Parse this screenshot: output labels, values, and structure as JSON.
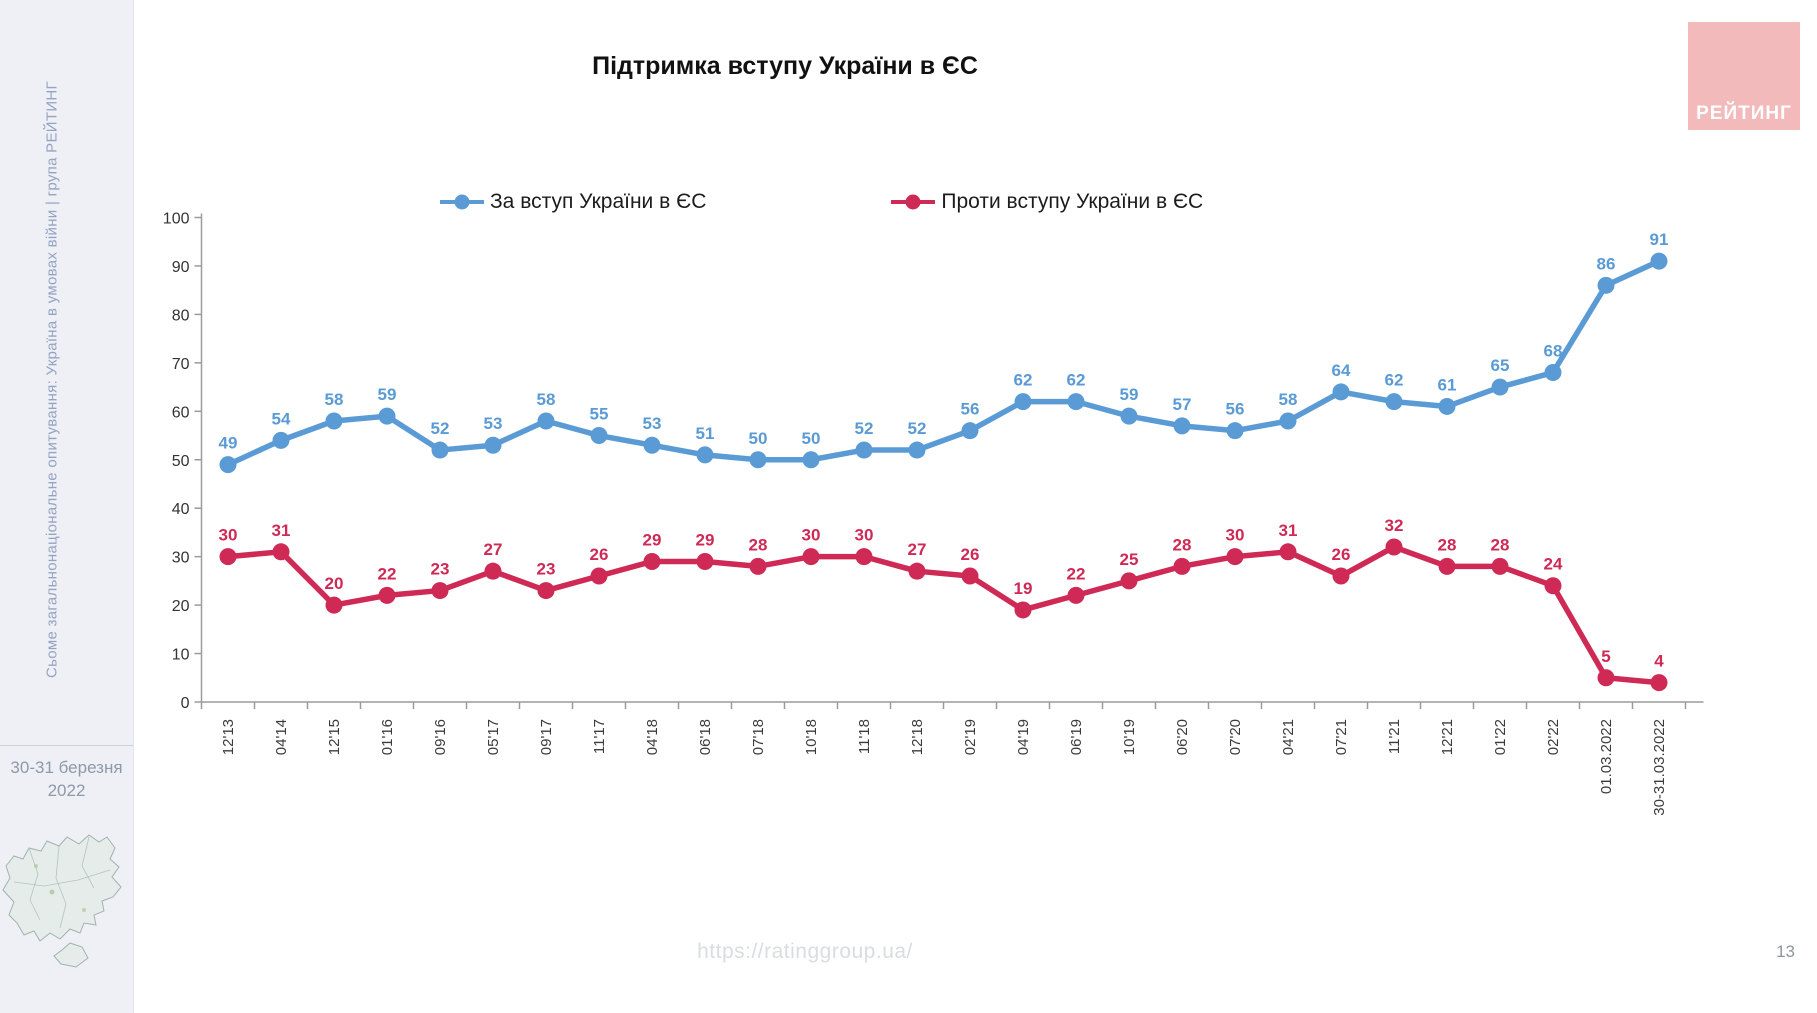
{
  "page": {
    "title": "Підтримка вступу України в ЄС",
    "footer_url": "https://ratinggroup.ua/",
    "page_number": "13",
    "logo_text": "РЕЙТИНГ",
    "logo_bg": "#f2baba"
  },
  "sidebar": {
    "survey_label": "Сьоме загальнонаціональне опитування: Україна в умовах війни | група РЕЙТИНГ",
    "date_line1": "30-31 березня",
    "date_line2": "2022"
  },
  "chart_data": {
    "type": "line",
    "title": "Підтримка вступу України в ЄС",
    "categories": [
      "12'13",
      "04'14",
      "12'15",
      "01'16",
      "09'16",
      "05'17",
      "09'17",
      "11'17",
      "04'18",
      "06'18",
      "07'18",
      "10'18",
      "11'18",
      "12'18",
      "02'19",
      "04'19",
      "06'19",
      "10'19",
      "06'20",
      "07'20",
      "04'21",
      "07'21",
      "11'21",
      "12'21",
      "01'22",
      "02'22",
      "01.03.2022",
      "30-31.03.2022"
    ],
    "series": [
      {
        "name": "За вступ України в ЄС",
        "color": "#5b9bd5",
        "values": [
          49,
          54,
          58,
          59,
          52,
          53,
          58,
          55,
          53,
          51,
          50,
          50,
          52,
          52,
          56,
          62,
          62,
          59,
          57,
          56,
          58,
          64,
          62,
          61,
          65,
          68,
          86,
          91
        ]
      },
      {
        "name": "Проти вступу України в ЄС",
        "color": "#ce2a55",
        "values": [
          30,
          31,
          20,
          22,
          23,
          27,
          23,
          26,
          29,
          29,
          28,
          30,
          30,
          27,
          26,
          19,
          22,
          25,
          28,
          30,
          31,
          26,
          32,
          28,
          28,
          24,
          5,
          4
        ]
      }
    ],
    "ylim": [
      0,
      100
    ],
    "y_ticks": [
      0,
      10,
      20,
      30,
      40,
      50,
      60,
      70,
      80,
      90,
      100
    ],
    "grid": false,
    "legend_position": "top",
    "data_labels": true,
    "x_label_rotation": -90
  }
}
